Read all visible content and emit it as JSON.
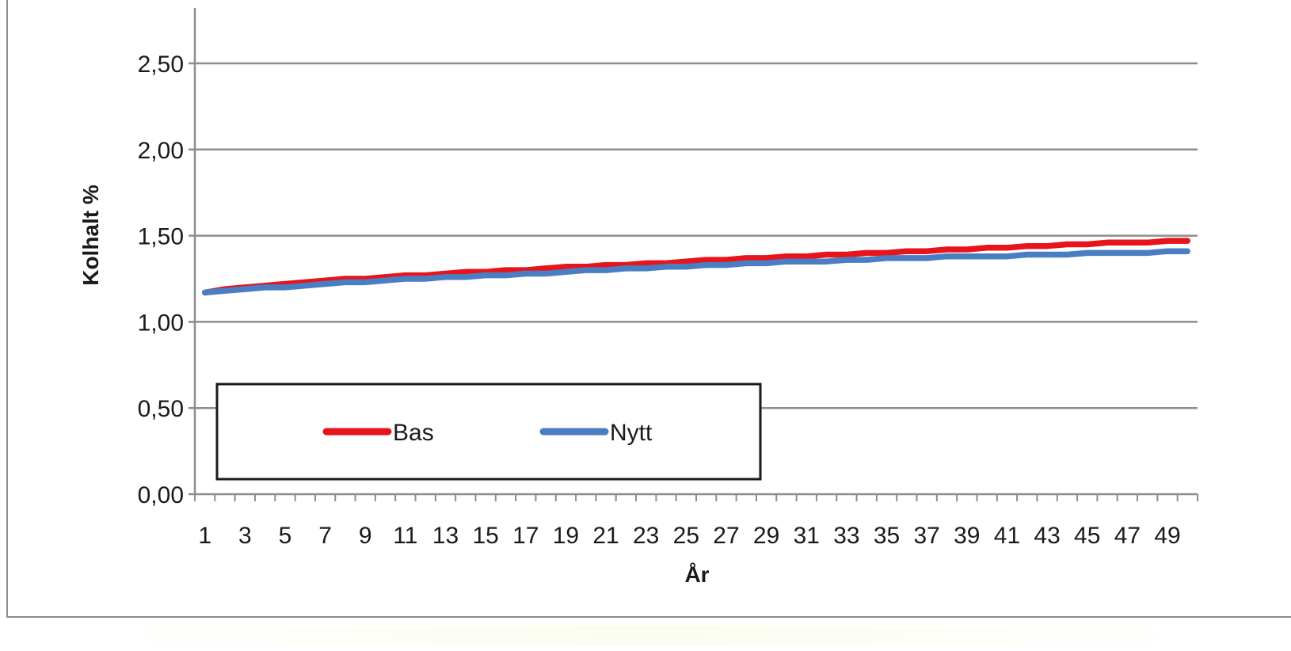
{
  "chart_data": {
    "type": "line",
    "title": "",
    "xlabel": "År",
    "ylabel": "Kolhalt %",
    "x": [
      1,
      2,
      3,
      4,
      5,
      6,
      7,
      8,
      9,
      10,
      11,
      12,
      13,
      14,
      15,
      16,
      17,
      18,
      19,
      20,
      21,
      22,
      23,
      24,
      25,
      26,
      27,
      28,
      29,
      30,
      31,
      32,
      33,
      34,
      35,
      36,
      37,
      38,
      39,
      40,
      41,
      42,
      43,
      44,
      45,
      46,
      47,
      48,
      49,
      50
    ],
    "x_tick_labels": [
      "1",
      "3",
      "5",
      "7",
      "9",
      "11",
      "13",
      "15",
      "17",
      "19",
      "21",
      "23",
      "25",
      "27",
      "29",
      "31",
      "33",
      "35",
      "37",
      "39",
      "41",
      "43",
      "45",
      "47",
      "49"
    ],
    "y_tick_labels": [
      "0,00",
      "0,50",
      "1,00",
      "1,50",
      "2,00",
      "2,50"
    ],
    "ylim": [
      0,
      2.5
    ],
    "grid": true,
    "legend_placement": "bottom-left",
    "series": [
      {
        "name": "Bas",
        "color": "#e8141c",
        "values": [
          1.17,
          1.19,
          1.2,
          1.21,
          1.22,
          1.23,
          1.24,
          1.25,
          1.25,
          1.26,
          1.27,
          1.27,
          1.28,
          1.29,
          1.29,
          1.3,
          1.3,
          1.31,
          1.32,
          1.32,
          1.33,
          1.33,
          1.34,
          1.34,
          1.35,
          1.36,
          1.36,
          1.37,
          1.37,
          1.38,
          1.38,
          1.39,
          1.39,
          1.4,
          1.4,
          1.41,
          1.41,
          1.42,
          1.42,
          1.43,
          1.43,
          1.44,
          1.44,
          1.45,
          1.45,
          1.46,
          1.46,
          1.46,
          1.47,
          1.47
        ]
      },
      {
        "name": "Nytt",
        "color": "#4a7ec2",
        "values": [
          1.17,
          1.18,
          1.19,
          1.2,
          1.2,
          1.21,
          1.22,
          1.23,
          1.23,
          1.24,
          1.25,
          1.25,
          1.26,
          1.26,
          1.27,
          1.27,
          1.28,
          1.28,
          1.29,
          1.3,
          1.3,
          1.31,
          1.31,
          1.32,
          1.32,
          1.33,
          1.33,
          1.34,
          1.34,
          1.35,
          1.35,
          1.35,
          1.36,
          1.36,
          1.37,
          1.37,
          1.37,
          1.38,
          1.38,
          1.38,
          1.38,
          1.39,
          1.39,
          1.39,
          1.4,
          1.4,
          1.4,
          1.4,
          1.41,
          1.41
        ]
      }
    ]
  }
}
